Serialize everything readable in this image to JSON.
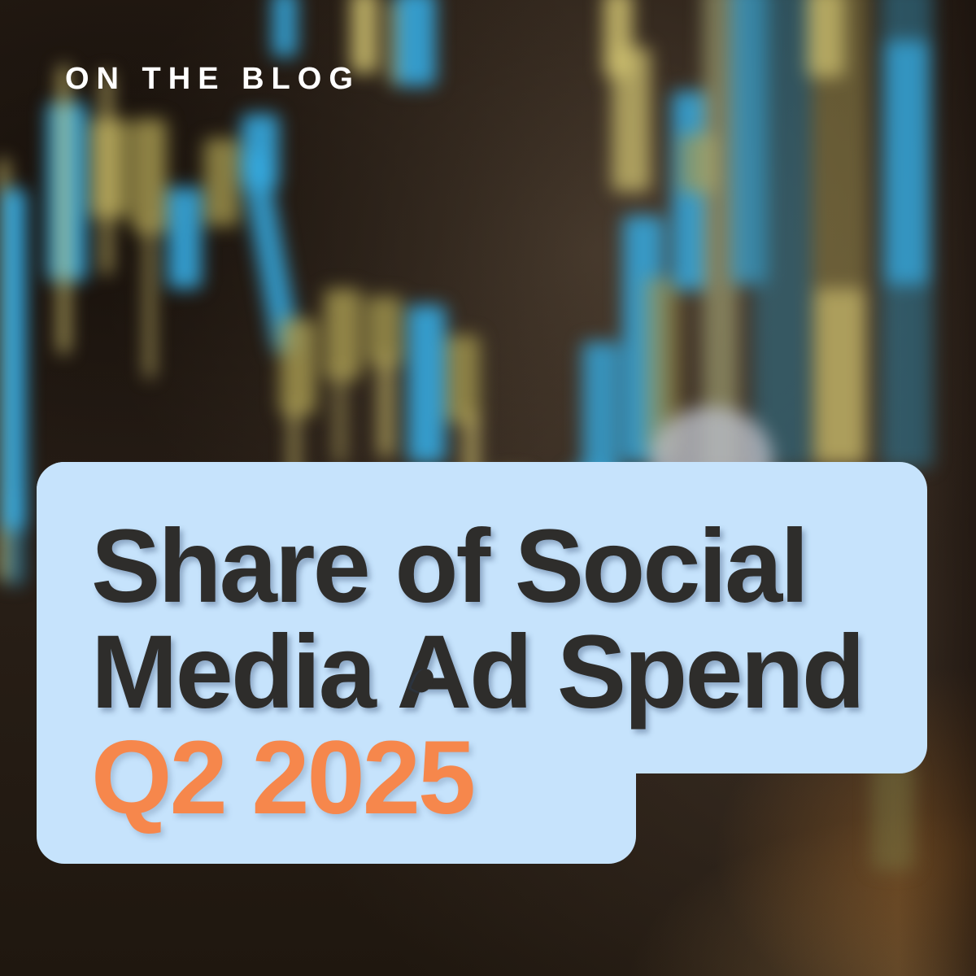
{
  "eyebrow": {
    "label": "ON THE BLOG"
  },
  "card": {
    "title_line1": "Share of Social",
    "title_line2": "Media Ad Spend",
    "subtitle": "Q2 2025"
  },
  "colors": {
    "card_bg": "#C6E3FC",
    "title_text": "#2E2D2B",
    "accent_orange": "#F6874C",
    "eyebrow_text": "#FFFFFF",
    "candle_blue": "#35A9DF",
    "candle_yellow": "#CFC170"
  }
}
